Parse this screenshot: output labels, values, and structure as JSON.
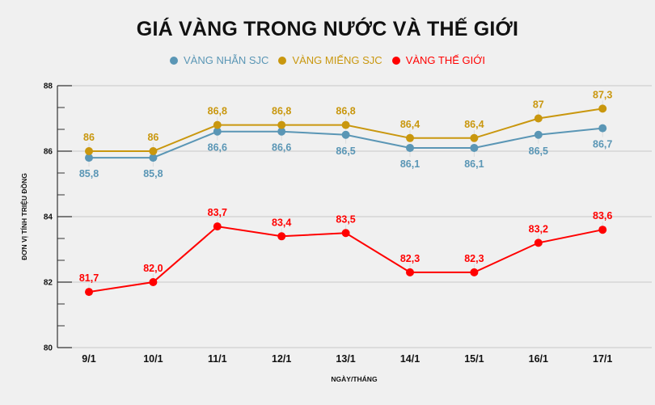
{
  "chart_data": {
    "type": "line",
    "title": "GIÁ VÀNG TRONG NƯỚC VÀ THẾ GIỚI",
    "xlabel": "NGÀY/THÁNG",
    "ylabel": "ĐƠN VỊ TÍNH TRIỆU ĐỒNG",
    "categories": [
      "9/1",
      "10/1",
      "11/1",
      "12/1",
      "13/1",
      "14/1",
      "15/1",
      "16/1",
      "17/1"
    ],
    "ylim": [
      80,
      88
    ],
    "yticks": [
      80,
      82,
      84,
      86,
      88
    ],
    "grid": true,
    "legend_position": "top",
    "series": [
      {
        "name": "VÀNG NHẪN SJC",
        "color": "#5a96b5",
        "label_position": "below",
        "values": [
          85.8,
          85.8,
          86.6,
          86.6,
          86.5,
          86.1,
          86.1,
          86.5,
          86.7
        ],
        "labels": [
          "85,8",
          "85,8",
          "86,6",
          "86,6",
          "86,5",
          "86,1",
          "86,1",
          "86,5",
          "86,7"
        ]
      },
      {
        "name": "VÀNG MIẾNG SJC",
        "color": "#c9970e",
        "label_position": "above",
        "values": [
          86,
          86,
          86.8,
          86.8,
          86.8,
          86.4,
          86.4,
          87,
          87.3
        ],
        "labels": [
          "86",
          "86",
          "86,8",
          "86,8",
          "86,8",
          "86,4",
          "86,4",
          "87",
          "87,3"
        ]
      },
      {
        "name": "VÀNG THẾ GIỚI",
        "color": "#ff0000",
        "label_position": "above",
        "values": [
          81.7,
          82.0,
          83.7,
          83.4,
          83.5,
          82.3,
          82.3,
          83.2,
          83.6
        ],
        "labels": [
          "81,7",
          "82,0",
          "83,7",
          "83,4",
          "83,5",
          "82,3",
          "82,3",
          "83,2",
          "83,6"
        ]
      }
    ]
  }
}
